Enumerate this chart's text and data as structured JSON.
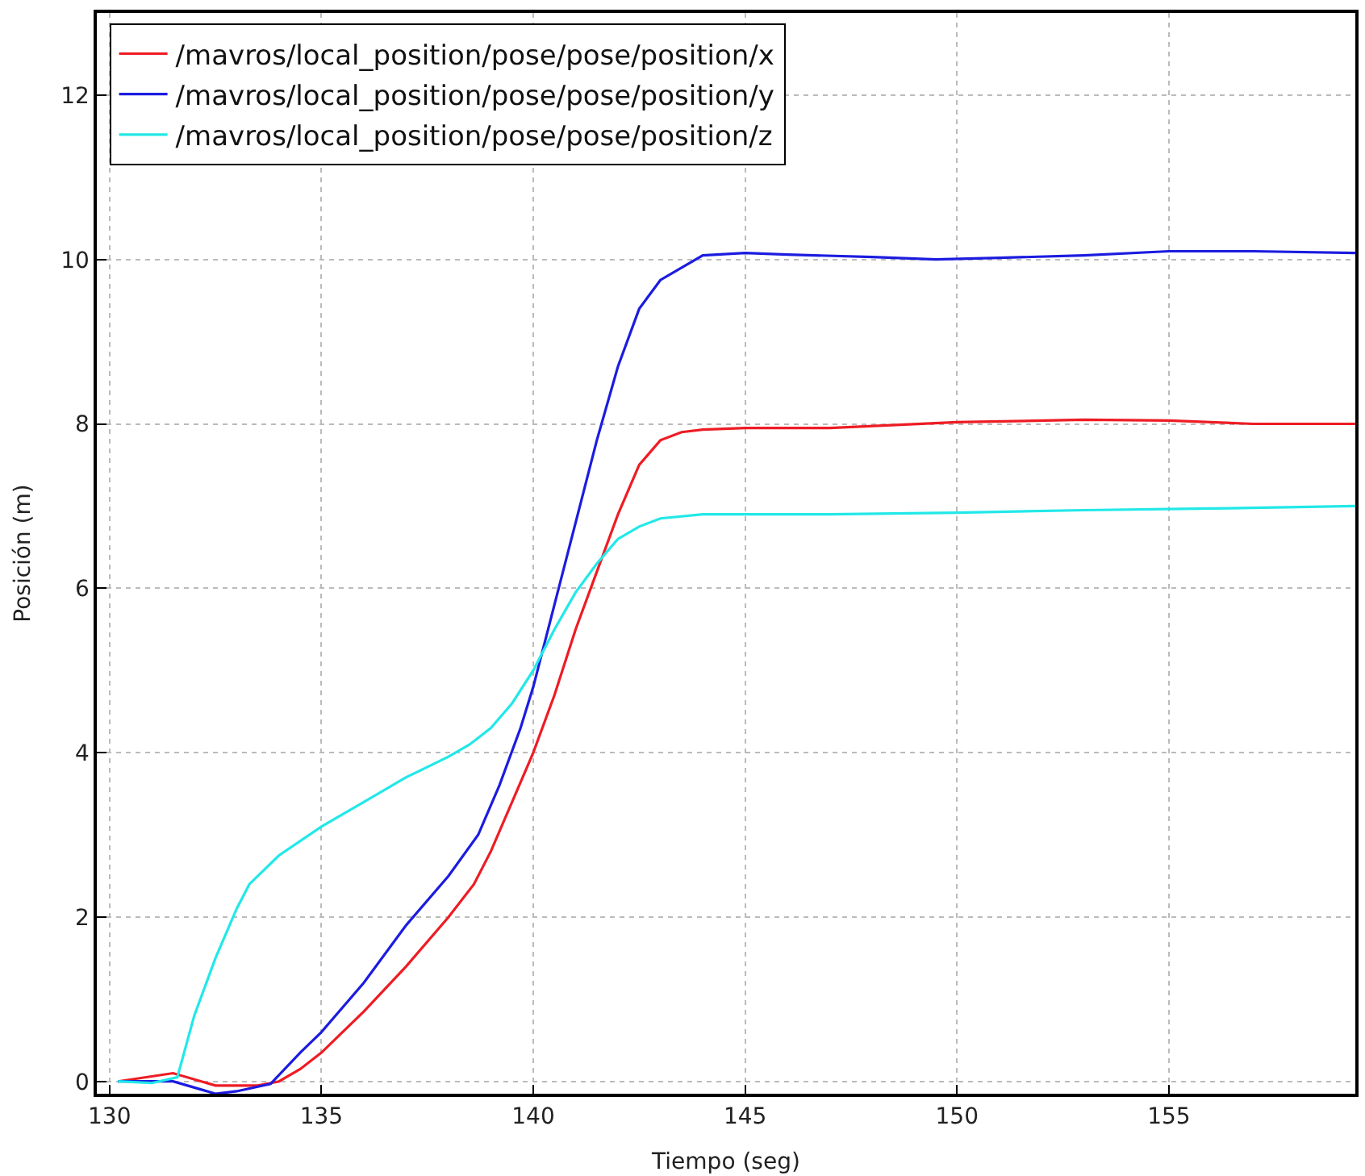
{
  "chart_data": {
    "type": "line",
    "xlabel": "Tiempo (seg)",
    "ylabel": "Posición (m)",
    "xlim": [
      129.7,
      159.4
    ],
    "xticks": [
      130,
      135,
      140,
      145,
      150,
      155
    ],
    "ylim": [
      -0.15,
      13
    ],
    "yticks": [
      0,
      2,
      4,
      6,
      8,
      10,
      12
    ],
    "grid": true,
    "legend": "top left",
    "line_style": "solid",
    "series": [
      {
        "name": "/mavros/local_position/pose/pose/position/x",
        "color": "#ee1c24",
        "x": [
          130.2,
          131.5,
          132.5,
          133.5,
          134,
          134.5,
          135,
          136,
          137,
          138,
          138.6,
          139,
          139.5,
          140,
          140.5,
          141,
          141.5,
          142,
          142.5,
          143,
          143.5,
          144,
          145,
          147,
          150,
          153,
          155,
          157,
          159.4
        ],
        "values": [
          0,
          0.1,
          -0.05,
          -0.05,
          0,
          0.15,
          0.35,
          0.85,
          1.4,
          2.0,
          2.4,
          2.8,
          3.4,
          4.0,
          4.7,
          5.5,
          6.2,
          6.9,
          7.5,
          7.8,
          7.9,
          7.93,
          7.95,
          7.95,
          8.02,
          8.05,
          8.04,
          8.0,
          8.0
        ]
      },
      {
        "name": "/mavros/local_position/pose/pose/position/y",
        "color": "#1c1ce0",
        "x": [
          130.2,
          131.5,
          132.5,
          133,
          133.8,
          134.5,
          135,
          136,
          137,
          138,
          138.7,
          139.2,
          139.7,
          140,
          140.5,
          141,
          141.5,
          142,
          142.5,
          143,
          143.5,
          144,
          145,
          146,
          148,
          149.5,
          151,
          153,
          155,
          157,
          159.4
        ],
        "values": [
          0,
          0,
          -0.15,
          -0.12,
          -0.03,
          0.35,
          0.6,
          1.2,
          1.9,
          2.5,
          3.0,
          3.6,
          4.3,
          4.8,
          5.8,
          6.8,
          7.8,
          8.7,
          9.4,
          9.75,
          9.9,
          10.05,
          10.08,
          10.06,
          10.03,
          10.0,
          10.02,
          10.05,
          10.1,
          10.1,
          10.08
        ]
      },
      {
        "name": "/mavros/local_position/pose/pose/position/z",
        "color": "#22e8e8",
        "x": [
          130.2,
          131,
          131.6,
          132,
          132.5,
          133,
          133.3,
          134,
          135,
          136,
          137,
          138,
          138.5,
          139,
          139.5,
          140,
          140.5,
          141,
          141.5,
          142,
          142.5,
          143,
          144,
          147,
          150,
          153,
          156,
          159.4
        ],
        "values": [
          0,
          -0.02,
          0.05,
          0.8,
          1.5,
          2.1,
          2.4,
          2.75,
          3.1,
          3.4,
          3.7,
          3.95,
          4.1,
          4.3,
          4.6,
          5.0,
          5.5,
          5.95,
          6.3,
          6.6,
          6.75,
          6.85,
          6.9,
          6.9,
          6.92,
          6.95,
          6.97,
          7.0
        ]
      }
    ]
  }
}
